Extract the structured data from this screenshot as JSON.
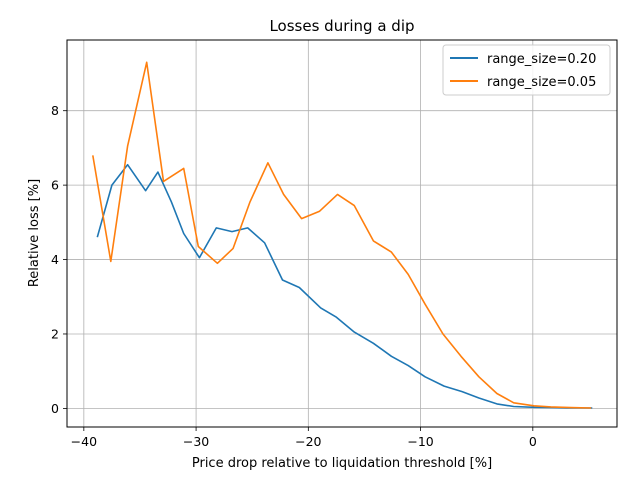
{
  "chart_data": {
    "type": "line",
    "title": "Losses during a dip",
    "xlabel": "Price drop relative to liquidation threshold [%]",
    "ylabel": "Relative loss [%]",
    "xlim": [
      -41.5,
      7.5
    ],
    "ylim": [
      -0.5,
      9.9
    ],
    "xticks": [
      -40,
      -30,
      -20,
      -10,
      0
    ],
    "xtick_labels": [
      "−40",
      "−30",
      "−20",
      "−10",
      "0"
    ],
    "yticks": [
      0,
      2,
      4,
      6,
      8
    ],
    "ytick_labels": [
      "0",
      "2",
      "4",
      "6",
      "8"
    ],
    "grid": true,
    "legend_position": "top-right",
    "series": [
      {
        "name": "range_size=0.20",
        "color": "#1f77b4",
        "x": [
          -38.8,
          -37.5,
          -36.1,
          -34.5,
          -33.4,
          -32.2,
          -31.1,
          -29.7,
          -28.2,
          -26.8,
          -25.4,
          -23.9,
          -22.3,
          -20.8,
          -18.9,
          -17.5,
          -15.9,
          -14.2,
          -12.6,
          -11.1,
          -9.6,
          -7.9,
          -6.3,
          -4.8,
          -3.2,
          -1.7,
          0.1,
          1.8,
          3.0,
          5.3
        ],
        "y": [
          4.6,
          6.0,
          6.55,
          5.85,
          6.35,
          5.55,
          4.7,
          4.05,
          4.85,
          4.75,
          4.85,
          4.45,
          3.45,
          3.25,
          2.7,
          2.45,
          2.05,
          1.75,
          1.4,
          1.15,
          0.85,
          0.6,
          0.45,
          0.28,
          0.12,
          0.05,
          0.03,
          0.02,
          0.01,
          0.01
        ]
      },
      {
        "name": "range_size=0.05",
        "color": "#ff7f0e",
        "x": [
          -39.2,
          -37.6,
          -36.1,
          -34.4,
          -32.9,
          -31.1,
          -29.8,
          -28.1,
          -26.7,
          -25.2,
          -23.6,
          -22.2,
          -20.6,
          -19.0,
          -17.4,
          -15.9,
          -14.2,
          -12.6,
          -11.1,
          -9.6,
          -8.0,
          -6.4,
          -4.8,
          -3.2,
          -1.7,
          0.1,
          1.6,
          3.4,
          5.2
        ],
        "y": [
          6.8,
          3.95,
          7.05,
          9.3,
          6.1,
          6.45,
          4.35,
          3.9,
          4.3,
          5.55,
          6.6,
          5.75,
          5.1,
          5.3,
          5.75,
          5.45,
          4.5,
          4.2,
          3.6,
          2.8,
          2.0,
          1.4,
          0.85,
          0.4,
          0.15,
          0.07,
          0.04,
          0.02,
          0.01
        ]
      }
    ]
  }
}
